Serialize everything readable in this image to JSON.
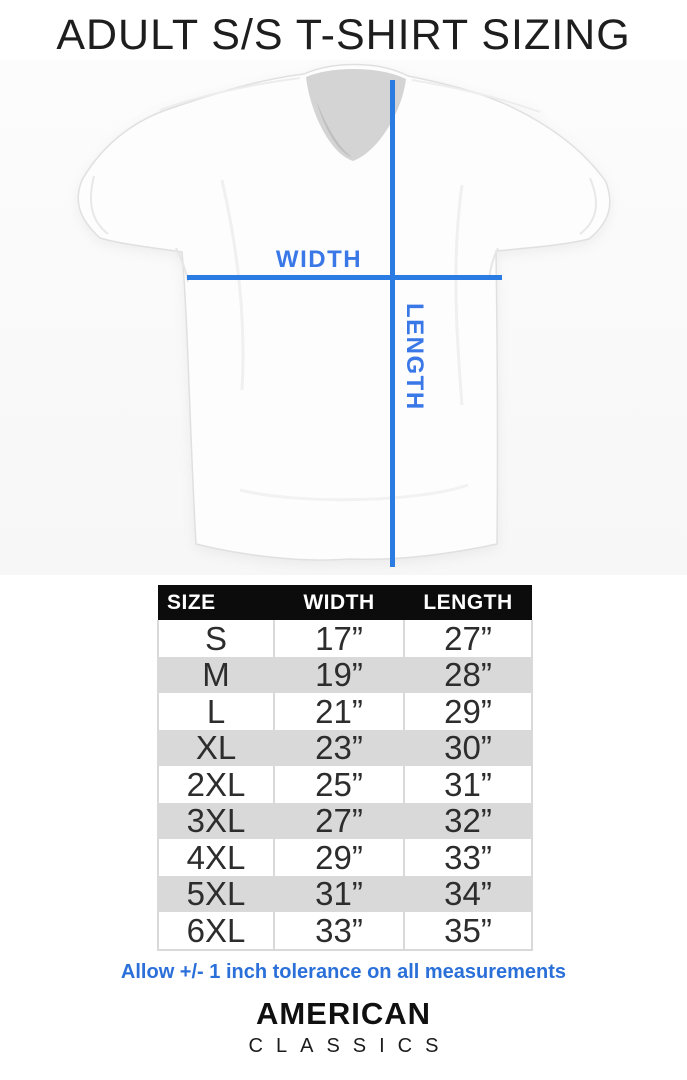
{
  "title": "ADULT S/S T-SHIRT SIZING",
  "diagram": {
    "width_label": "WIDTH",
    "length_label": "LENGTH"
  },
  "table": {
    "headers": [
      "SIZE",
      "WIDTH",
      "LENGTH"
    ],
    "rows": [
      {
        "size": "S",
        "width": "17”",
        "length": "27”"
      },
      {
        "size": "M",
        "width": "19”",
        "length": "28”"
      },
      {
        "size": "L",
        "width": "21”",
        "length": "29”"
      },
      {
        "size": "XL",
        "width": "23”",
        "length": "30”"
      },
      {
        "size": "2XL",
        "width": "25”",
        "length": "31”"
      },
      {
        "size": "3XL",
        "width": "27”",
        "length": "32”"
      },
      {
        "size": "4XL",
        "width": "29”",
        "length": "33”"
      },
      {
        "size": "5XL",
        "width": "31”",
        "length": "34”"
      },
      {
        "size": "6XL",
        "width": "33”",
        "length": "35”"
      }
    ]
  },
  "note": {
    "text": "Allow +/- 1 inch tolerance on all measurements"
  },
  "brand": {
    "line1": "AMERICAN",
    "line2": "CLASSICS"
  },
  "colors": {
    "accent_line": "#2a7ce2",
    "accent_label": "#3a78e8",
    "note_blue": "#2b6fd9",
    "table_header_bg": "#0c0c0c",
    "table_stripe": "#d9d9d9"
  }
}
